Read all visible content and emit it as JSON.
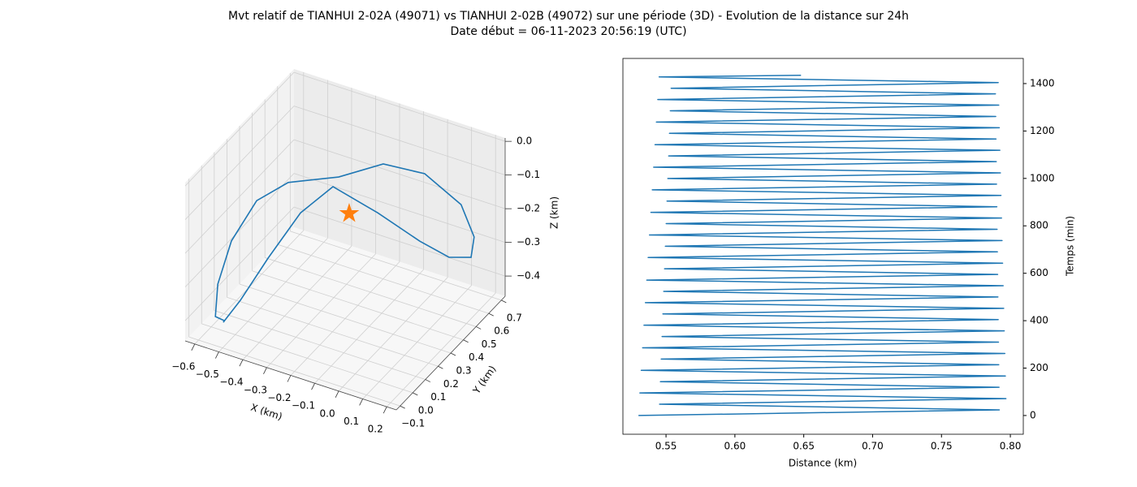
{
  "title": "Mvt relatif de TIANHUI 2-02A (49071) vs TIANHUI 2-02B (49072) sur une période (3D) - Evolution de la distance sur 24h",
  "subtitle": "Date début = 06-11-2023 20:56:19 (UTC)",
  "chart_data": [
    {
      "type": "line3d",
      "color": "#1f77b4",
      "xlabel": "X (km)",
      "ylabel": "Y (km)",
      "zlabel": "Z (km)",
      "x": [
        -0.504,
        -0.492,
        -0.484,
        -0.447,
        -0.351,
        -0.154,
        0.018,
        0.136,
        0.206,
        0.202,
        0.134,
        -0.003,
        -0.116,
        -0.218,
        -0.385,
        -0.479,
        -0.532,
        -0.541,
        -0.522,
        -0.5
      ],
      "y": [
        -0.087,
        0.026,
        0.229,
        0.416,
        0.49,
        0.47,
        0.477,
        0.484,
        0.525,
        0.557,
        0.583,
        0.555,
        0.442,
        0.283,
        0.201,
        0.13,
        0.031,
        -0.06,
        -0.115,
        -0.08
      ],
      "z": [
        -0.39,
        -0.366,
        -0.319,
        -0.249,
        -0.178,
        -0.202,
        -0.249,
        -0.272,
        -0.272,
        -0.225,
        -0.155,
        -0.084,
        -0.037,
        -0.037,
        -0.06,
        -0.108,
        -0.201,
        -0.296,
        -0.366,
        -0.388
      ],
      "marker": {
        "x": -0.218,
        "y": 0.366,
        "z": -0.178,
        "color": "#ff7f0e"
      },
      "xlim": [
        -0.64,
        0.24
      ],
      "ylim": [
        -0.13,
        0.73
      ],
      "zlim": [
        -0.46,
        0.01
      ],
      "xticks": [
        {
          "value": -0.6,
          "label": "−0.6"
        },
        {
          "value": -0.5,
          "label": "−0.5"
        },
        {
          "value": -0.4,
          "label": "−0.4"
        },
        {
          "value": -0.3,
          "label": "−0.3"
        },
        {
          "value": -0.2,
          "label": "−0.2"
        },
        {
          "value": -0.1,
          "label": "−0.1"
        },
        {
          "value": 0,
          "label": "0.0"
        },
        0.1,
        0.2
      ],
      "yticks": [
        {
          "value": -0.1,
          "label": "−0.1"
        },
        {
          "value": 0,
          "label": "0.0"
        },
        0.1,
        0.2,
        0.3,
        0.4,
        0.5,
        0.6,
        0.7
      ],
      "zticks": [
        {
          "value": 0,
          "label": "0.0"
        },
        {
          "value": -0.1,
          "label": "−0.1"
        },
        {
          "value": -0.2,
          "label": "−0.2"
        },
        {
          "value": -0.3,
          "label": "−0.3"
        },
        {
          "value": -0.4,
          "label": "−0.4"
        }
      ],
      "grid": true
    },
    {
      "type": "line",
      "color": "#1f77b4",
      "xlabel": "Distance (km)",
      "ylabel": "Temps (min)",
      "values": [
        0.53,
        0.792,
        0.5453,
        0.7968,
        0.531,
        0.7918,
        0.5459,
        0.7964,
        0.532,
        0.7916,
        0.5465,
        0.796,
        0.533,
        0.7914,
        0.5471,
        0.7956,
        0.534,
        0.7912,
        0.5477,
        0.7952,
        0.535,
        0.791,
        0.5483,
        0.7948,
        0.536,
        0.7908,
        0.5489,
        0.7944,
        0.537,
        0.7906,
        0.5495,
        0.794,
        0.538,
        0.7904,
        0.5501,
        0.7936,
        0.539,
        0.7902,
        0.5507,
        0.7932,
        0.54,
        0.79,
        0.5513,
        0.7928,
        0.541,
        0.7898,
        0.5519,
        0.7924,
        0.542,
        0.7896,
        0.5525,
        0.792,
        0.543,
        0.7894,
        0.5531,
        0.7916,
        0.544,
        0.7892,
        0.5537,
        0.7912,
        0.545,
        0.648
      ],
      "y": [
        0,
        23.8,
        47.6,
        71.4,
        95.2,
        119,
        142.8,
        166.6,
        190.4,
        214.2,
        238,
        261.8,
        285.6,
        309.4,
        333.2,
        357,
        380.8,
        404.6,
        428.4,
        452.2,
        476,
        499.8,
        523.6,
        547.4,
        571.2,
        595,
        618.8,
        642.6,
        666.4,
        690.2,
        714,
        737.8,
        761.6,
        785.4,
        809.2,
        833,
        856.8,
        880.6,
        904.4,
        928.2,
        952,
        975.8,
        999.6,
        1023.4,
        1047.2,
        1071,
        1094.8,
        1118.6,
        1142.4,
        1166.2,
        1190,
        1213.8,
        1237.6,
        1261.4,
        1285.2,
        1309,
        1332.8,
        1356.6,
        1380.4,
        1404.2,
        1428,
        1435
      ],
      "xlim": [
        0.5187,
        0.8094
      ],
      "ylim": [
        -79,
        1506
      ],
      "xticks": [
        0.55,
        {
          "value": 0.6,
          "label": "0.60"
        },
        0.65,
        {
          "value": 0.7,
          "label": "0.70"
        },
        0.75,
        {
          "value": 0.8,
          "label": "0.80"
        }
      ],
      "yticks": [
        0,
        200,
        400,
        600,
        800,
        1000,
        1200,
        1400
      ],
      "yaxis_side": "right"
    }
  ]
}
